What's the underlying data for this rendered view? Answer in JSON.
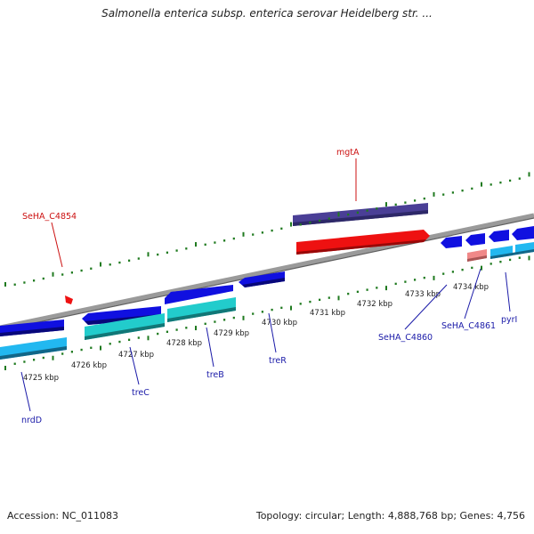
{
  "title": "Salmonella enterica subsp. enterica serovar Heidelberg str. ...",
  "footer": {
    "accession": "Accession: NC_011083",
    "summary": "Topology: circular; Length: 4,888,768 bp; Genes: 4,756"
  },
  "colors": {
    "backbone": "#8a8a8a",
    "tick": "#1f7a1f",
    "label_blue": "#1a1aa8",
    "label_red": "#cc1111",
    "gene_blue": "#1010e0",
    "gene_cyan": "#22cccc",
    "gene_lightblue": "#22b8f0",
    "gene_red": "#ee1111",
    "gene_purple": "#4a3f96",
    "gene_pink": "#f08888"
  },
  "kbp_labels": [
    "4725 kbp",
    "4726 kbp",
    "4727 kbp",
    "4728 kbp",
    "4729 kbp",
    "4730 kbp",
    "4731 kbp",
    "4732 kbp",
    "4733 kbp",
    "4734 kbp"
  ],
  "gene_labels": [
    {
      "text": "mgtA",
      "color": "red"
    },
    {
      "text": "SeHA_C4854",
      "color": "red"
    },
    {
      "text": "nrdD",
      "color": "blue"
    },
    {
      "text": "treC",
      "color": "blue"
    },
    {
      "text": "treB",
      "color": "blue"
    },
    {
      "text": "treR",
      "color": "blue"
    },
    {
      "text": "SeHA_C4860",
      "color": "blue"
    },
    {
      "text": "SeHA_C4861",
      "color": "blue"
    },
    {
      "text": "pyrI",
      "color": "blue"
    }
  ]
}
